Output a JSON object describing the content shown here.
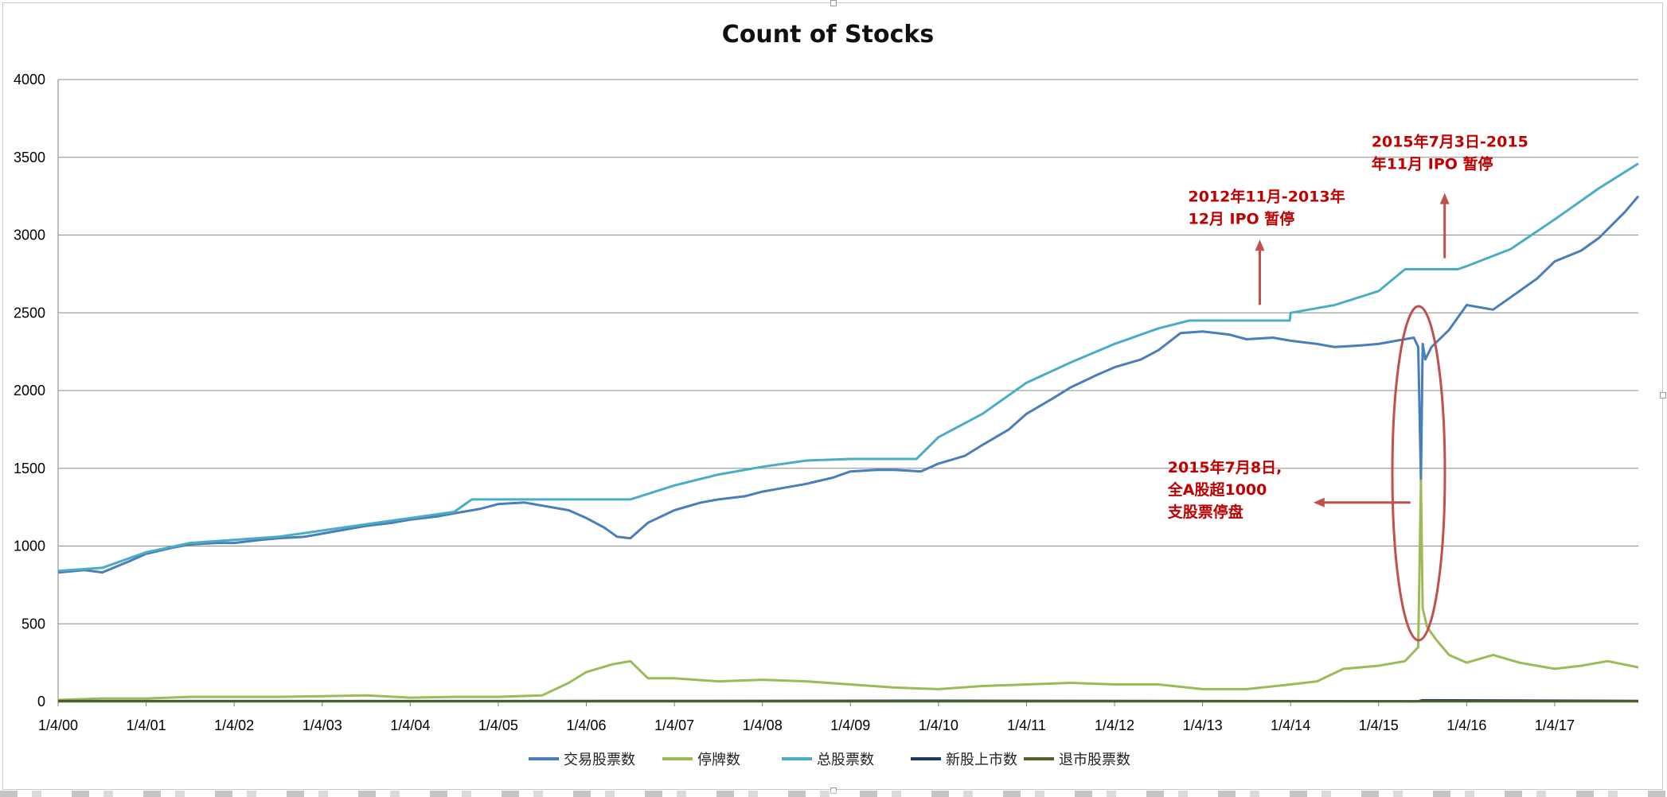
{
  "chart_data": {
    "type": "line",
    "title": "Count of Stocks",
    "xlabel": "",
    "ylabel": "",
    "ylim": [
      0,
      4000
    ],
    "yticks": [
      0,
      500,
      1000,
      1500,
      2000,
      2500,
      3000,
      3500,
      4000
    ],
    "xlim": [
      2000.0,
      2017.95
    ],
    "xtick_labels": [
      "1/4/00",
      "1/4/01",
      "1/4/02",
      "1/4/03",
      "1/4/04",
      "1/4/05",
      "1/4/06",
      "1/4/07",
      "1/4/08",
      "1/4/09",
      "1/4/10",
      "1/4/11",
      "1/4/12",
      "1/4/13",
      "1/4/14",
      "1/4/15",
      "1/4/16",
      "1/4/17"
    ],
    "grid": "horizontal",
    "legend_position": "bottom",
    "series": [
      {
        "name": "交易股票数",
        "color": "#4a7ebb",
        "x": [
          2000.0,
          2000.3,
          2000.5,
          2000.8,
          2001.0,
          2001.3,
          2001.5,
          2001.8,
          2002.0,
          2002.3,
          2002.5,
          2002.8,
          2003.0,
          2003.3,
          2003.5,
          2003.8,
          2004.0,
          2004.3,
          2004.5,
          2004.8,
          2005.0,
          2005.3,
          2005.5,
          2005.8,
          2006.0,
          2006.2,
          2006.35,
          2006.5,
          2006.7,
          2007.0,
          2007.3,
          2007.5,
          2007.8,
          2008.0,
          2008.3,
          2008.5,
          2008.8,
          2009.0,
          2009.3,
          2009.5,
          2009.8,
          2010.0,
          2010.3,
          2010.5,
          2010.8,
          2011.0,
          2011.3,
          2011.5,
          2011.8,
          2012.0,
          2012.3,
          2012.5,
          2012.75,
          2013.0,
          2013.3,
          2013.5,
          2013.8,
          2014.0,
          2014.3,
          2014.5,
          2014.8,
          2015.0,
          2015.2,
          2015.4,
          2015.45,
          2015.48,
          2015.5,
          2015.53,
          2015.6,
          2015.8,
          2016.0,
          2016.3,
          2016.5,
          2016.8,
          2017.0,
          2017.3,
          2017.5,
          2017.8,
          2017.95
        ],
        "values": [
          830,
          845,
          830,
          900,
          950,
          990,
          1010,
          1020,
          1020,
          1040,
          1050,
          1060,
          1080,
          1110,
          1130,
          1150,
          1170,
          1190,
          1210,
          1240,
          1270,
          1280,
          1260,
          1230,
          1180,
          1120,
          1060,
          1050,
          1150,
          1230,
          1280,
          1300,
          1320,
          1350,
          1380,
          1400,
          1440,
          1480,
          1490,
          1490,
          1480,
          1530,
          1580,
          1650,
          1750,
          1850,
          1950,
          2020,
          2100,
          2150,
          2200,
          2260,
          2370,
          2380,
          2360,
          2330,
          2340,
          2320,
          2300,
          2280,
          2290,
          2300,
          2320,
          2340,
          2280,
          1420,
          2300,
          2200,
          2280,
          2390,
          2550,
          2520,
          2600,
          2720,
          2830,
          2900,
          2980,
          3150,
          3250
        ]
      },
      {
        "name": "停牌数",
        "color": "#9bbb59",
        "x": [
          2000.0,
          2000.5,
          2001.0,
          2001.5,
          2002.0,
          2002.5,
          2003.0,
          2003.5,
          2004.0,
          2004.5,
          2005.0,
          2005.5,
          2005.8,
          2006.0,
          2006.3,
          2006.5,
          2006.7,
          2007.0,
          2007.5,
          2008.0,
          2008.5,
          2009.0,
          2009.5,
          2010.0,
          2010.5,
          2011.0,
          2011.5,
          2012.0,
          2012.5,
          2013.0,
          2013.5,
          2014.0,
          2014.3,
          2014.6,
          2015.0,
          2015.3,
          2015.45,
          2015.48,
          2015.5,
          2015.55,
          2015.65,
          2015.8,
          2016.0,
          2016.3,
          2016.6,
          2017.0,
          2017.3,
          2017.6,
          2017.95
        ],
        "values": [
          10,
          20,
          20,
          30,
          30,
          30,
          35,
          40,
          25,
          30,
          30,
          40,
          120,
          190,
          240,
          260,
          150,
          150,
          130,
          140,
          130,
          110,
          90,
          80,
          100,
          110,
          120,
          110,
          110,
          80,
          80,
          110,
          130,
          210,
          230,
          260,
          350,
          1420,
          600,
          480,
          400,
          300,
          250,
          300,
          250,
          210,
          230,
          260,
          220
        ]
      },
      {
        "name": "总股票数",
        "color": "#4bacc6",
        "x": [
          2000.0,
          2000.5,
          2001.0,
          2001.5,
          2002.0,
          2002.5,
          2003.0,
          2003.5,
          2004.0,
          2004.5,
          2004.7,
          2005.0,
          2005.5,
          2006.0,
          2006.5,
          2007.0,
          2007.5,
          2008.0,
          2008.5,
          2009.0,
          2009.5,
          2009.75,
          2010.0,
          2010.5,
          2011.0,
          2011.5,
          2012.0,
          2012.5,
          2012.85,
          2013.0,
          2013.5,
          2013.99,
          2014.0,
          2014.5,
          2015.0,
          2015.3,
          2015.5,
          2015.6,
          2015.9,
          2016.0,
          2016.5,
          2017.0,
          2017.5,
          2017.95
        ],
        "values": [
          840,
          860,
          960,
          1020,
          1040,
          1060,
          1100,
          1140,
          1180,
          1220,
          1300,
          1300,
          1300,
          1300,
          1300,
          1390,
          1460,
          1510,
          1550,
          1560,
          1560,
          1560,
          1700,
          1850,
          2050,
          2180,
          2300,
          2400,
          2450,
          2450,
          2450,
          2450,
          2500,
          2550,
          2640,
          2780,
          2780,
          2780,
          2780,
          2800,
          2910,
          3100,
          3300,
          3460
        ]
      },
      {
        "name": "新股上市数",
        "color": "#1f3864",
        "x": [
          2000.0,
          2005.0,
          2010.0,
          2015.45,
          2015.5,
          2017.95
        ],
        "values": [
          3,
          3,
          5,
          2,
          8,
          4
        ]
      },
      {
        "name": "退市股票数",
        "color": "#4f6228",
        "x": [
          2000.0,
          2010.0,
          2017.95
        ],
        "values": [
          1,
          1,
          1
        ]
      }
    ],
    "annotations": [
      {
        "name": "ipo-pause-2012",
        "lines": [
          "2012年11月-2013年",
          "12月 IPO 暂停"
        ],
        "x": 2013.65,
        "y": 2500,
        "arrow": "up"
      },
      {
        "name": "ipo-pause-2015",
        "lines": [
          "2015年7月3日-2015",
          "年11月 IPO 暂停"
        ],
        "x": 2015.75,
        "y": 2800,
        "arrow": "up"
      },
      {
        "name": "suspension-2015",
        "lines": [
          "2015年7月8日,",
          "全A股超1000",
          "支股票停盘"
        ],
        "x": 2015.0,
        "y": 1280,
        "arrow": "left"
      }
    ]
  }
}
